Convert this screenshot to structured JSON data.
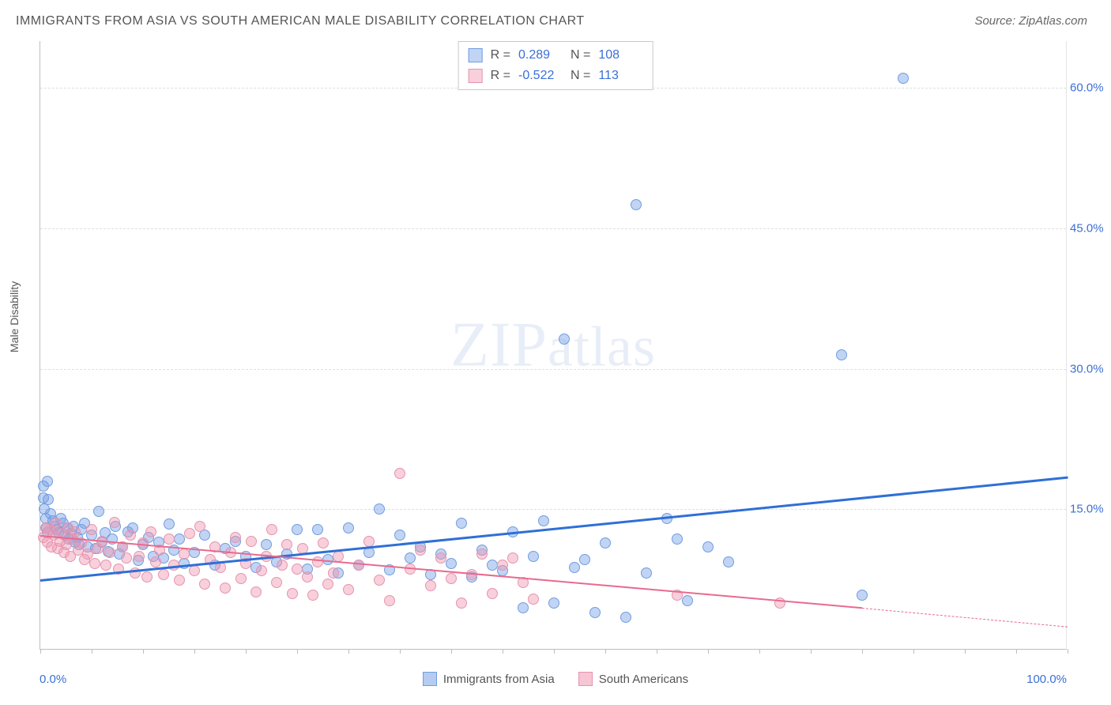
{
  "title": "IMMIGRANTS FROM ASIA VS SOUTH AMERICAN MALE DISABILITY CORRELATION CHART",
  "source": "Source: ZipAtlas.com",
  "y_axis_title": "Male Disability",
  "watermark_bold": "ZIP",
  "watermark_rest": "atlas",
  "chart": {
    "type": "scatter-with-trend",
    "xlim": [
      0,
      100
    ],
    "ylim": [
      0,
      65
    ],
    "x_ticks_labeled": [
      "0.0%",
      "100.0%"
    ],
    "y_ticks": [
      15.0,
      30.0,
      45.0,
      60.0
    ],
    "y_tick_labels": [
      "15.0%",
      "30.0%",
      "45.0%",
      "60.0%"
    ],
    "x_minor_tick_step": 5,
    "grid_color": "#e0e0e0",
    "background_color": "#ffffff",
    "axis_color": "#bdbdbd",
    "tick_label_color": "#3b6fd6",
    "tick_label_fontsize": 15,
    "marker_radius": 7,
    "marker_border_width": 1.5,
    "series": [
      {
        "name": "Immigrants from Asia",
        "color_fill": "rgba(120,160,230,0.45)",
        "color_stroke": "#6f9de0",
        "R": "0.289",
        "N": "108",
        "trend": {
          "x1": 0,
          "y1": 7.5,
          "x2": 100,
          "y2": 18.5,
          "color": "#2f6fd6",
          "width": 3,
          "dash_from_x": 100
        },
        "points": [
          [
            0.3,
            17.5
          ],
          [
            0.3,
            16.2
          ],
          [
            0.4,
            15.0
          ],
          [
            0.5,
            14.0
          ],
          [
            0.6,
            13.0
          ],
          [
            0.7,
            18.0
          ],
          [
            0.7,
            12.5
          ],
          [
            0.8,
            16.0
          ],
          [
            1.0,
            14.5
          ],
          [
            1.2,
            13.8
          ],
          [
            1.4,
            13.2
          ],
          [
            1.6,
            12.8
          ],
          [
            1.8,
            12.5
          ],
          [
            2.0,
            14.0
          ],
          [
            2.2,
            13.5
          ],
          [
            2.4,
            12.2
          ],
          [
            2.6,
            13.0
          ],
          [
            2.8,
            11.8
          ],
          [
            3.0,
            12.4
          ],
          [
            3.2,
            13.2
          ],
          [
            3.4,
            11.5
          ],
          [
            3.6,
            12.0
          ],
          [
            3.8,
            11.2
          ],
          [
            4.0,
            12.8
          ],
          [
            4.3,
            13.5
          ],
          [
            4.6,
            11.0
          ],
          [
            5.0,
            12.2
          ],
          [
            5.4,
            10.8
          ],
          [
            5.7,
            14.8
          ],
          [
            6.0,
            11.5
          ],
          [
            6.3,
            12.5
          ],
          [
            6.6,
            10.5
          ],
          [
            7.0,
            11.8
          ],
          [
            7.3,
            13.2
          ],
          [
            7.7,
            10.2
          ],
          [
            8.0,
            11.0
          ],
          [
            8.5,
            12.6
          ],
          [
            9.0,
            13.0
          ],
          [
            9.5,
            9.5
          ],
          [
            10.0,
            11.2
          ],
          [
            10.5,
            12.0
          ],
          [
            11.0,
            10.0
          ],
          [
            11.5,
            11.5
          ],
          [
            12.0,
            9.8
          ],
          [
            12.5,
            13.4
          ],
          [
            13.0,
            10.6
          ],
          [
            13.5,
            11.8
          ],
          [
            14.0,
            9.2
          ],
          [
            15.0,
            10.4
          ],
          [
            16.0,
            12.2
          ],
          [
            17.0,
            9.0
          ],
          [
            18.0,
            10.8
          ],
          [
            19.0,
            11.6
          ],
          [
            20.0,
            10.0
          ],
          [
            21.0,
            8.8
          ],
          [
            22.0,
            11.2
          ],
          [
            23.0,
            9.4
          ],
          [
            24.0,
            10.2
          ],
          [
            25.0,
            12.8
          ],
          [
            26.0,
            8.6
          ],
          [
            27.0,
            12.8
          ],
          [
            28.0,
            9.6
          ],
          [
            29.0,
            8.2
          ],
          [
            30.0,
            13.0
          ],
          [
            31.0,
            9.0
          ],
          [
            32.0,
            10.4
          ],
          [
            33.0,
            15.0
          ],
          [
            34.0,
            8.5
          ],
          [
            35.0,
            12.2
          ],
          [
            36.0,
            9.8
          ],
          [
            37.0,
            11.0
          ],
          [
            38.0,
            8.0
          ],
          [
            39.0,
            10.2
          ],
          [
            40.0,
            9.2
          ],
          [
            41.0,
            13.5
          ],
          [
            42.0,
            7.8
          ],
          [
            43.0,
            10.6
          ],
          [
            44.0,
            9.0
          ],
          [
            45.0,
            8.4
          ],
          [
            46.0,
            12.6
          ],
          [
            47.0,
            4.5
          ],
          [
            48.0,
            10.0
          ],
          [
            49.0,
            13.8
          ],
          [
            50.0,
            5.0
          ],
          [
            51.0,
            33.2
          ],
          [
            52.0,
            8.8
          ],
          [
            53.0,
            9.6
          ],
          [
            54.0,
            4.0
          ],
          [
            55.0,
            11.4
          ],
          [
            57.0,
            3.5
          ],
          [
            58.0,
            47.5
          ],
          [
            59.0,
            8.2
          ],
          [
            61.0,
            14.0
          ],
          [
            62.0,
            11.8
          ],
          [
            63.0,
            5.2
          ],
          [
            65.0,
            11.0
          ],
          [
            67.0,
            9.4
          ],
          [
            78.0,
            31.5
          ],
          [
            80.0,
            5.8
          ],
          [
            84.0,
            61.0
          ]
        ]
      },
      {
        "name": "South Americans",
        "color_fill": "rgba(240,150,175,0.45)",
        "color_stroke": "#e594ae",
        "R": "-0.522",
        "N": "113",
        "trend": {
          "x1": 0,
          "y1": 12.2,
          "x2": 80,
          "y2": 4.5,
          "color": "#e86a8f",
          "width": 2.5,
          "dash_from_x": 80,
          "x2_dash": 100,
          "y2_dash": 2.5
        },
        "points": [
          [
            0.3,
            12.0
          ],
          [
            0.5,
            13.0
          ],
          [
            0.7,
            11.5
          ],
          [
            0.9,
            12.8
          ],
          [
            1.1,
            11.0
          ],
          [
            1.3,
            12.2
          ],
          [
            1.5,
            13.5
          ],
          [
            1.7,
            10.8
          ],
          [
            1.9,
            11.6
          ],
          [
            2.1,
            12.4
          ],
          [
            2.3,
            10.4
          ],
          [
            2.5,
            11.2
          ],
          [
            2.7,
            13.0
          ],
          [
            2.9,
            10.0
          ],
          [
            3.1,
            11.8
          ],
          [
            3.4,
            12.6
          ],
          [
            3.7,
            10.6
          ],
          [
            4.0,
            11.4
          ],
          [
            4.3,
            9.6
          ],
          [
            4.6,
            10.2
          ],
          [
            5.0,
            12.8
          ],
          [
            5.3,
            9.2
          ],
          [
            5.6,
            10.8
          ],
          [
            6.0,
            11.6
          ],
          [
            6.4,
            9.0
          ],
          [
            6.8,
            10.4
          ],
          [
            7.2,
            13.6
          ],
          [
            7.6,
            8.6
          ],
          [
            8.0,
            11.0
          ],
          [
            8.4,
            9.8
          ],
          [
            8.8,
            12.2
          ],
          [
            9.2,
            8.2
          ],
          [
            9.6,
            10.0
          ],
          [
            10.0,
            11.4
          ],
          [
            10.4,
            7.8
          ],
          [
            10.8,
            12.6
          ],
          [
            11.2,
            9.4
          ],
          [
            11.6,
            10.6
          ],
          [
            12.0,
            8.0
          ],
          [
            12.5,
            11.8
          ],
          [
            13.0,
            9.0
          ],
          [
            13.5,
            7.4
          ],
          [
            14.0,
            10.2
          ],
          [
            14.5,
            12.4
          ],
          [
            15.0,
            8.4
          ],
          [
            15.5,
            13.2
          ],
          [
            16.0,
            7.0
          ],
          [
            16.5,
            9.6
          ],
          [
            17.0,
            11.0
          ],
          [
            17.5,
            8.8
          ],
          [
            18.0,
            6.6
          ],
          [
            18.5,
            10.4
          ],
          [
            19.0,
            12.0
          ],
          [
            19.5,
            7.6
          ],
          [
            20.0,
            9.2
          ],
          [
            20.5,
            11.6
          ],
          [
            21.0,
            6.2
          ],
          [
            21.5,
            8.4
          ],
          [
            22.0,
            10.0
          ],
          [
            22.5,
            12.8
          ],
          [
            23.0,
            7.2
          ],
          [
            23.5,
            9.0
          ],
          [
            24.0,
            11.2
          ],
          [
            24.5,
            6.0
          ],
          [
            25.0,
            8.6
          ],
          [
            25.5,
            10.8
          ],
          [
            26.0,
            7.8
          ],
          [
            26.5,
            5.8
          ],
          [
            27.0,
            9.4
          ],
          [
            27.5,
            11.4
          ],
          [
            28.0,
            7.0
          ],
          [
            28.5,
            8.2
          ],
          [
            29.0,
            10.0
          ],
          [
            30.0,
            6.4
          ],
          [
            31.0,
            9.0
          ],
          [
            32.0,
            11.6
          ],
          [
            33.0,
            7.4
          ],
          [
            34.0,
            5.2
          ],
          [
            35.0,
            18.8
          ],
          [
            36.0,
            8.6
          ],
          [
            37.0,
            10.6
          ],
          [
            38.0,
            6.8
          ],
          [
            39.0,
            9.8
          ],
          [
            40.0,
            7.6
          ],
          [
            41.0,
            5.0
          ],
          [
            42.0,
            8.0
          ],
          [
            43.0,
            10.2
          ],
          [
            44.0,
            6.0
          ],
          [
            45.0,
            9.0
          ],
          [
            46.0,
            9.8
          ],
          [
            47.0,
            7.2
          ],
          [
            48.0,
            5.4
          ],
          [
            62.0,
            5.8
          ],
          [
            72.0,
            5.0
          ]
        ]
      }
    ]
  },
  "bottom_legend": [
    {
      "label": "Immigrants from Asia",
      "fill": "rgba(120,160,230,0.55)",
      "stroke": "#6f9de0"
    },
    {
      "label": "South Americans",
      "fill": "rgba(240,150,175,0.55)",
      "stroke": "#e594ae"
    }
  ]
}
